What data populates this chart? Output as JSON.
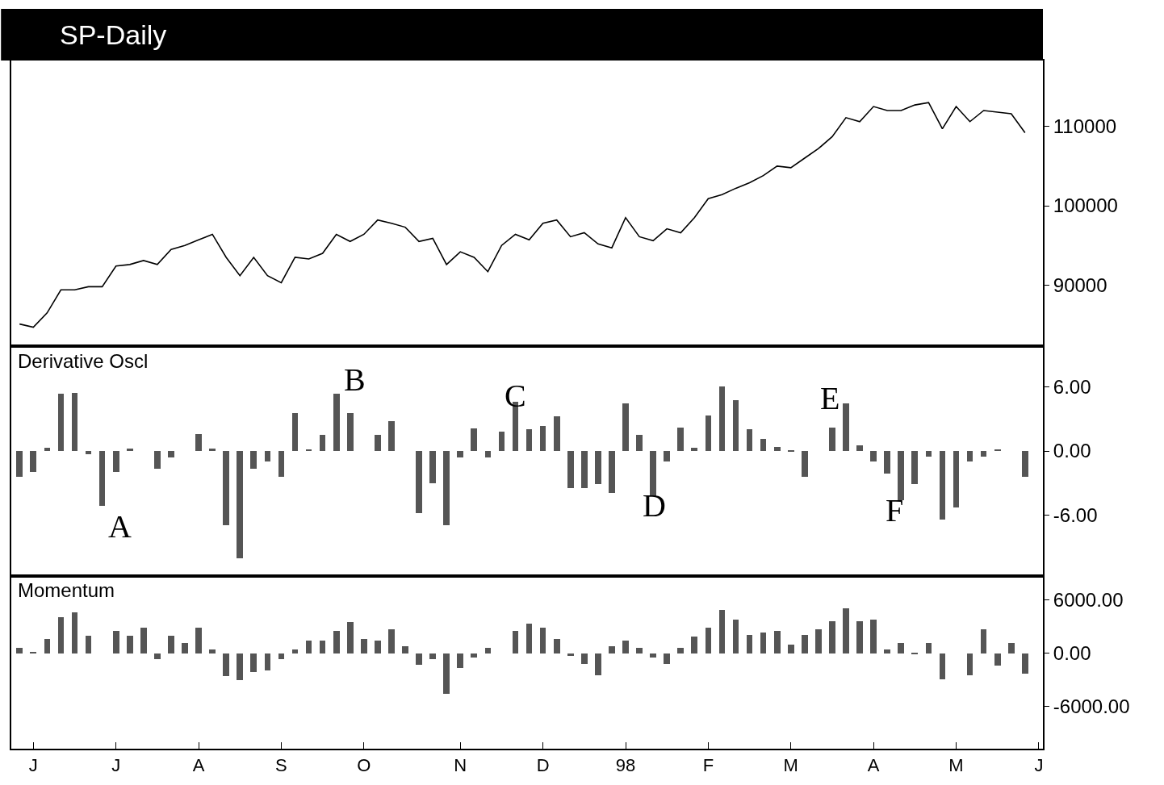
{
  "chart_data": [
    {
      "type": "line",
      "title": "SP-Daily",
      "color": "#000000",
      "grid": false,
      "tick_labels": "y",
      "categories": [
        null,
        null,
        null,
        null,
        null,
        null,
        null,
        null,
        null,
        null,
        null,
        null,
        null,
        null,
        null,
        null,
        null,
        null,
        null,
        null,
        null,
        null,
        null,
        null,
        null,
        null,
        null,
        null,
        null,
        null,
        null,
        null,
        null,
        null,
        null,
        null,
        null,
        null,
        null,
        null,
        null,
        null,
        null,
        null,
        null,
        null,
        null,
        null,
        null,
        null,
        null,
        null,
        null,
        null,
        null,
        null,
        null,
        null,
        null,
        null,
        null,
        null,
        null,
        null,
        null,
        null,
        null,
        null,
        null,
        null,
        null,
        null,
        null,
        null,
        null
      ],
      "values": [
        85100,
        84700,
        86500,
        89400,
        89400,
        89800,
        89800,
        92400,
        92600,
        93100,
        92600,
        94500,
        95000,
        95700,
        96400,
        93500,
        91200,
        93500,
        91200,
        90300,
        93500,
        93300,
        94000,
        96400,
        95500,
        96400,
        98200,
        97800,
        97300,
        95500,
        95900,
        92600,
        94200,
        93500,
        91700,
        95000,
        96400,
        95700,
        97800,
        98200,
        96100,
        96600,
        95200,
        94700,
        98500,
        96100,
        95600,
        97100,
        96600,
        98500,
        100900,
        101400,
        102200,
        102900,
        103800,
        105000,
        104800,
        106000,
        107200,
        108700,
        111100,
        110600,
        112500,
        112000,
        112000,
        112700,
        113000,
        109700,
        112500,
        110600,
        112000,
        111800,
        111600,
        109200,
        null
      ],
      "ylim": [
        82300,
        118300
      ],
      "yticks": [
        90000,
        100000,
        110000
      ]
    },
    {
      "type": "bar",
      "title": "Derivative Oscl",
      "color": "#555555",
      "grid": false,
      "tick_labels": "y",
      "categories": [
        null,
        null,
        null,
        null,
        null,
        null,
        null,
        null,
        null,
        null,
        null,
        null,
        null,
        null,
        null,
        null,
        null,
        null,
        null,
        null,
        null,
        null,
        null,
        null,
        null,
        null,
        null,
        null,
        null,
        null,
        null,
        null,
        null,
        null,
        null,
        null,
        null,
        null,
        null,
        null,
        null,
        null,
        null,
        null,
        null,
        null,
        null,
        null,
        null,
        null,
        null,
        null,
        null,
        null,
        null,
        null,
        null,
        null,
        null,
        null,
        null,
        null,
        null,
        null,
        null,
        null,
        null,
        null,
        null,
        null,
        null,
        null,
        null,
        null,
        null
      ],
      "values": [
        -2.4,
        -2.0,
        0.3,
        5.3,
        5.4,
        -0.3,
        -5.1,
        -2.0,
        0.2,
        0,
        -1.7,
        -0.6,
        0,
        1.6,
        0.2,
        -6.9,
        -10.0,
        -1.7,
        -1.0,
        -2.4,
        3.5,
        0.1,
        1.5,
        5.3,
        3.5,
        0,
        1.5,
        2.8,
        0,
        -5.8,
        -3.0,
        -6.9,
        -0.6,
        2.1,
        -0.6,
        1.8,
        4.6,
        2.0,
        2.3,
        3.2,
        -3.5,
        -3.5,
        -3.1,
        -3.9,
        4.4,
        1.5,
        -4.2,
        -1.0,
        2.2,
        0.3,
        3.3,
        6.0,
        4.7,
        2.0,
        1.1,
        0.4,
        -0.1,
        -2.4,
        0,
        2.2,
        4.4,
        0.5,
        -1.0,
        -2.1,
        -4.6,
        -3.1,
        -0.5,
        -6.4,
        -5.3,
        -1.0,
        -0.5,
        0.1,
        0,
        -2.4,
        null
      ],
      "ylim": [
        -11.6,
        9.75
      ],
      "yticks": [
        {
          "value": 6,
          "label": "6.00"
        },
        {
          "value": 0,
          "label": "0.00"
        },
        {
          "value": -6,
          "label": "-6.00"
        }
      ],
      "annotations": [
        "A",
        "B",
        "C",
        "D",
        "E",
        "F"
      ]
    },
    {
      "type": "bar",
      "title": "Momentum",
      "color": "#555555",
      "grid": false,
      "categories": [
        null,
        "J",
        null,
        null,
        null,
        null,
        null,
        "J",
        null,
        null,
        null,
        null,
        null,
        "A",
        null,
        null,
        null,
        null,
        null,
        "S",
        null,
        null,
        null,
        null,
        null,
        "O",
        null,
        null,
        null,
        null,
        null,
        null,
        "N",
        null,
        null,
        null,
        null,
        null,
        "D",
        null,
        null,
        null,
        null,
        null,
        "98",
        null,
        null,
        null,
        null,
        null,
        "F",
        null,
        null,
        null,
        null,
        null,
        "M",
        null,
        null,
        null,
        null,
        null,
        "A",
        null,
        null,
        null,
        null,
        null,
        "M",
        null,
        null,
        null,
        null,
        null,
        "J"
      ],
      "values": [
        600,
        200,
        1600,
        4100,
        4600,
        2000,
        0,
        2500,
        2000,
        2900,
        -700,
        2000,
        1200,
        2900,
        400,
        -2600,
        -3000,
        -2100,
        -1900,
        -700,
        400,
        1400,
        1400,
        2500,
        3500,
        1600,
        1400,
        2700,
        800,
        -1300,
        -700,
        -4600,
        -1700,
        -500,
        600,
        0,
        2500,
        3300,
        2900,
        1600,
        -300,
        -1200,
        -2500,
        800,
        1400,
        600,
        -500,
        -1200,
        600,
        1900,
        2900,
        4900,
        3800,
        2100,
        2300,
        2500,
        1000,
        2100,
        2700,
        3600,
        5100,
        3600,
        3800,
        400,
        1200,
        -100,
        1200,
        -2900,
        0,
        -2500,
        2700,
        -1400,
        1200,
        -2300,
        null
      ],
      "ylim": [
        -10800,
        8700
      ],
      "yticks": [
        {
          "value": 6000,
          "label": "6000.00"
        },
        {
          "value": 0,
          "label": "0.00"
        },
        {
          "value": -6000,
          "label": "-6000.00"
        }
      ]
    }
  ]
}
